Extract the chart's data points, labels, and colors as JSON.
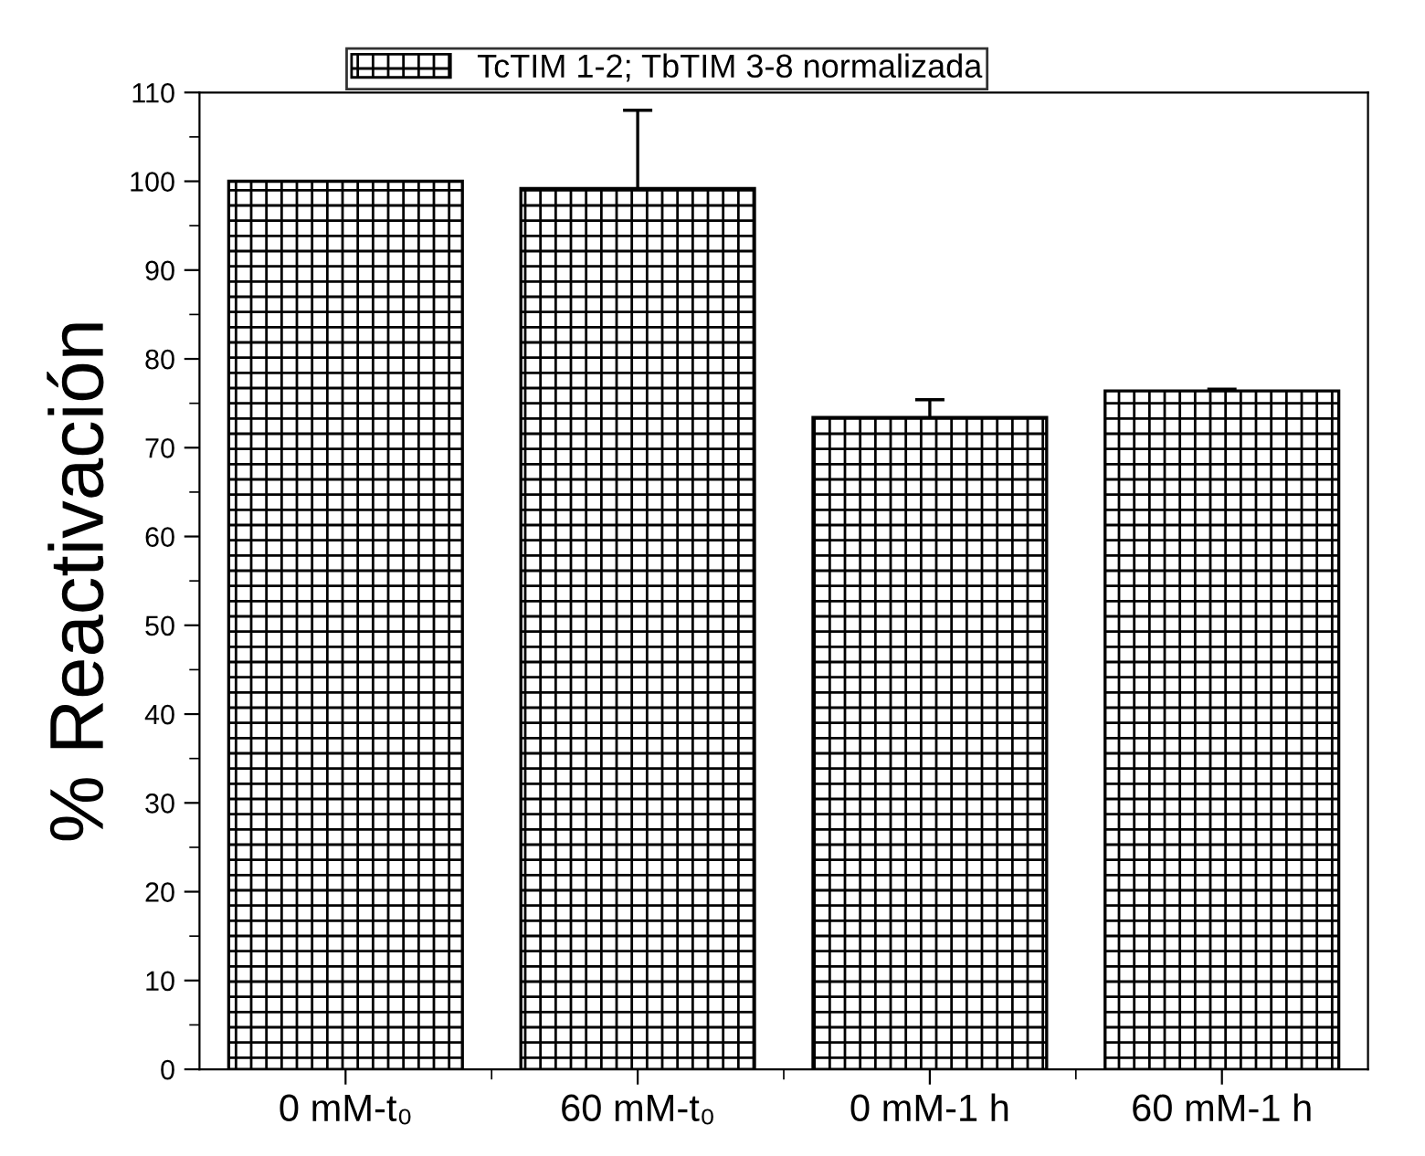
{
  "chart_data": {
    "type": "bar",
    "ylabel": "% Reactivación",
    "categories": [
      "0 mM-t₀",
      "60 mM-t₀",
      "0 mM-1 h",
      "60 mM-1 h"
    ],
    "series": [
      {
        "name": "TcTIM 1-2; TbTIM 3-8 normalizada",
        "color": "#000000",
        "values": [
          100,
          99.2,
          73.4,
          76.4
        ],
        "errors": [
          null,
          [
            99.2,
            108
          ],
          [
            73.4,
            75.4
          ],
          [
            76.4,
            76.6
          ]
        ]
      }
    ],
    "ylim": [
      0,
      110
    ],
    "yticks": [
      0,
      10,
      20,
      30,
      40,
      50,
      60,
      70,
      80,
      90,
      100,
      110
    ],
    "grid": false,
    "legend": "top"
  }
}
